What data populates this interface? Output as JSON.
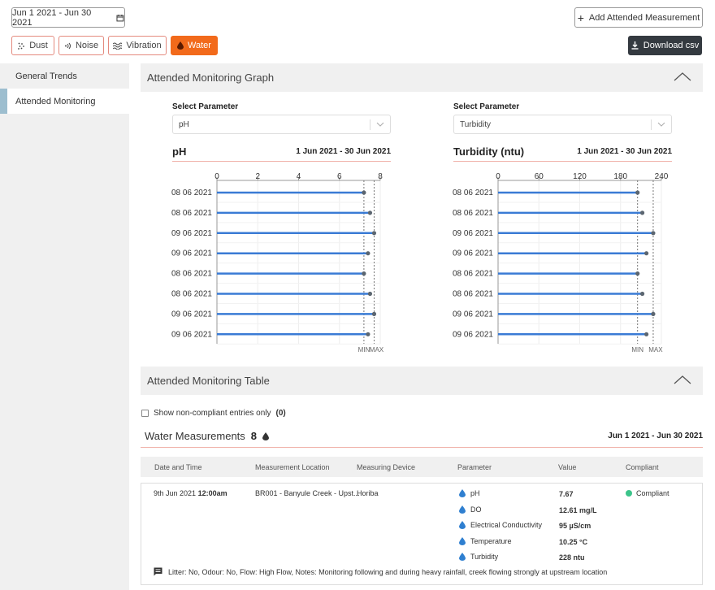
{
  "header": {
    "date_range": "Jun 1 2021 - Jun 30 2021",
    "add_button": "Add Attended Measurement",
    "download_button": "Download csv",
    "filters": [
      {
        "label": "Dust",
        "icon": "dust-icon",
        "active": false
      },
      {
        "label": "Noise",
        "icon": "noise-icon",
        "active": false
      },
      {
        "label": "Vibration",
        "icon": "vibration-icon",
        "active": false
      },
      {
        "label": "Water",
        "icon": "water-drop-icon",
        "active": true
      }
    ]
  },
  "sidebar": {
    "items": [
      {
        "label": "General Trends",
        "active": false
      },
      {
        "label": "Attended Monitoring",
        "active": true
      }
    ]
  },
  "graph_section": {
    "title": "Attended Monitoring Graph"
  },
  "table_section": {
    "title": "Attended Monitoring Table"
  },
  "colors": {
    "accent": "#f26a1b",
    "bar": "#3a7bd5",
    "compliant": "#3cc48a"
  },
  "chart_data": [
    {
      "type": "bar",
      "select_label": "Select Parameter",
      "selected": "pH",
      "title": "pH",
      "date": "1 Jun 2021 - 30 Jun 2021",
      "categories": [
        "08 06 2021",
        "08 06 2021",
        "09 06 2021",
        "09 06 2021",
        "08 06 2021",
        "08 06 2021",
        "09 06 2021",
        "09 06 2021"
      ],
      "values": [
        7.2,
        7.5,
        7.7,
        7.4,
        7.2,
        7.5,
        7.7,
        7.4
      ],
      "xlim": [
        0,
        8
      ],
      "ticks": [
        "0",
        "2",
        "4",
        "6",
        "8"
      ],
      "min_value": 7.2,
      "max_value": 7.7,
      "min_label": "MIN",
      "max_label": "MAX"
    },
    {
      "type": "bar",
      "select_label": "Select Parameter",
      "selected": "Turbidity",
      "title": "Turbidity (ntu)",
      "date": "1 Jun 2021 - 30 Jun 2021",
      "categories": [
        "08 06 2021",
        "08 06 2021",
        "09 06 2021",
        "09 06 2021",
        "08 06 2021",
        "08 06 2021",
        "09 06 2021",
        "09 06 2021"
      ],
      "values": [
        205,
        212,
        228,
        218,
        205,
        212,
        228,
        218
      ],
      "xlim": [
        0,
        240
      ],
      "ticks": [
        "0",
        "60",
        "120",
        "180",
        "240"
      ],
      "min_value": 205,
      "max_value": 228,
      "min_label": "MIN",
      "max_label": "MAX"
    }
  ],
  "table": {
    "checkbox_label": "Show non-compliant entries only",
    "checkbox_count": "(0)",
    "title": "Water Measurements",
    "count": "8",
    "date_range": "Jun 1 2021 - Jun 30 2021",
    "columns": [
      "Date and Time",
      "Measurement Location",
      "Measuring Device",
      "Parameter",
      "Value",
      "Compliant"
    ],
    "row": {
      "date": "9th Jun 2021",
      "time": "12:00am",
      "location": "BR001 - Banyule Creek - Upst...",
      "device": "Horiba",
      "compliant": "Compliant",
      "params": [
        {
          "name": "pH",
          "value": "7.67"
        },
        {
          "name": "DO",
          "value": "12.61 mg/L"
        },
        {
          "name": "Electrical Conductivity",
          "value": "95 µS/cm"
        },
        {
          "name": "Temperature",
          "value": "10.25 °C"
        },
        {
          "name": "Turbidity",
          "value": "228 ntu"
        }
      ],
      "note": "Litter: No, Odour: No, Flow: High Flow, Notes: Monitoring following and during heavy rainfall, creek flowing strongly at upstream location"
    }
  }
}
